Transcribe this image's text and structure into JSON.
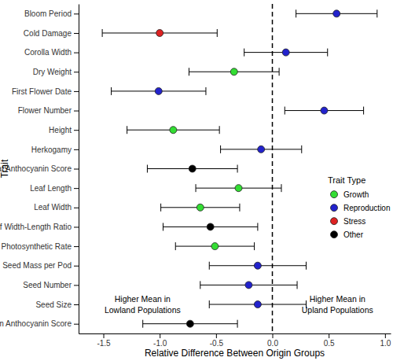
{
  "chart_data": {
    "type": "dot_errorbar",
    "orientation": "horizontal",
    "x_label": "Relative Difference Between Origin Groups",
    "y_label": "Trait",
    "categories": [
      "Bloom Period",
      "Cold Damage",
      "Corolla Width",
      "Dry Weight",
      "First Flower Date",
      "Flower Number",
      "Height",
      "Herkogamy",
      "Leaf Anthocyanin Score",
      "Leaf Length",
      "Leaf Width",
      "Leaf Width-Length Ratio",
      "Photosynthetic Rate",
      "Seed Mass per Pod",
      "Seed Number",
      "Seed Size",
      "Stem Anthocyanin Score"
    ],
    "series": [
      {
        "name": "Growth",
        "color": "#33dd33",
        "marker": "circle",
        "values": [
          null,
          null,
          null,
          -0.34,
          null,
          null,
          -0.88,
          null,
          null,
          -0.3,
          -0.64,
          null,
          -0.51,
          null,
          null,
          null,
          null
        ],
        "errors": [
          null,
          null,
          null,
          0.4,
          null,
          null,
          0.41,
          null,
          null,
          0.38,
          0.35,
          null,
          0.35,
          null,
          null,
          null,
          null
        ]
      },
      {
        "name": "Reproduction",
        "color": "#2222cc",
        "marker": "circle",
        "values": [
          0.57,
          null,
          0.12,
          null,
          -1.01,
          0.46,
          null,
          -0.1,
          null,
          null,
          null,
          null,
          null,
          -0.13,
          -0.21,
          -0.13,
          null
        ],
        "errors": [
          0.36,
          null,
          0.37,
          null,
          0.42,
          0.35,
          null,
          0.36,
          null,
          null,
          null,
          null,
          null,
          0.43,
          0.43,
          0.43,
          null
        ]
      },
      {
        "name": "Stress",
        "color": "#dd2222",
        "marker": "circle",
        "values": [
          null,
          -1.0,
          null,
          null,
          null,
          null,
          null,
          null,
          null,
          null,
          null,
          null,
          null,
          null,
          null,
          null,
          null
        ],
        "errors": [
          null,
          0.51,
          null,
          null,
          null,
          null,
          null,
          null,
          null,
          null,
          null,
          null,
          null,
          null,
          null,
          null,
          null
        ]
      },
      {
        "name": "Other",
        "color": "#000000",
        "marker": "circle",
        "values": [
          null,
          null,
          null,
          null,
          null,
          null,
          null,
          null,
          -0.71,
          null,
          null,
          -0.55,
          null,
          null,
          null,
          null,
          -0.73
        ],
        "errors": [
          null,
          null,
          null,
          null,
          null,
          null,
          null,
          null,
          0.4,
          null,
          null,
          0.42,
          null,
          null,
          null,
          null,
          0.42
        ]
      }
    ],
    "xlim": [
      -1.72,
      1.05
    ],
    "xticks": [
      -1.5,
      {
        "value": -1.0,
        "label": "-1.0"
      },
      -0.5,
      {
        "value": 0,
        "label": "0.0"
      },
      0.5,
      {
        "value": 1.0,
        "label": "1.0"
      }
    ],
    "vline": 0,
    "legend": "right",
    "legend_title": "Trait Type",
    "annotations": [
      [
        "Higher Mean in",
        "Lowland Populations"
      ],
      [
        "Higher Mean in",
        "Upland Populations"
      ]
    ],
    "grid": false
  }
}
